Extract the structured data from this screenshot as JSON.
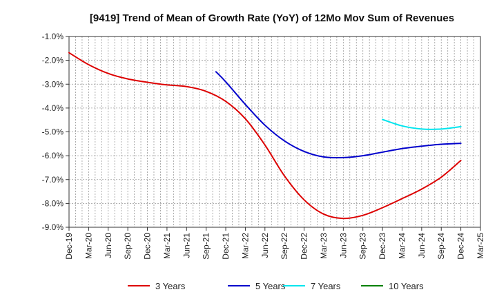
{
  "chart_data": {
    "type": "line",
    "title": "[9419]  Trend of Mean of Growth Rate (YoY) of 12Mo Mov Sum of Revenues",
    "xlabel": "",
    "ylabel": "",
    "ylim": [
      -9.0,
      -1.0
    ],
    "yticks": [
      "-1.0%",
      "-2.0%",
      "-3.0%",
      "-4.0%",
      "-5.0%",
      "-6.0%",
      "-7.0%",
      "-8.0%",
      "-9.0%"
    ],
    "ytick_values": [
      -1,
      -2,
      -3,
      -4,
      -5,
      -6,
      -7,
      -8,
      -9
    ],
    "x_categories": [
      "Dec-19",
      "Mar-20",
      "Jun-20",
      "Sep-20",
      "Dec-20",
      "Mar-21",
      "Jun-21",
      "Sep-21",
      "Dec-21",
      "Mar-22",
      "Jun-22",
      "Sep-22",
      "Dec-22",
      "Mar-23",
      "Jun-23",
      "Sep-23",
      "Dec-23",
      "Mar-24",
      "Jun-24",
      "Sep-24",
      "Dec-24",
      "Mar-25"
    ],
    "grid": true,
    "legend_position": "bottom",
    "series": [
      {
        "name": "3 Years",
        "color": "#dd0000",
        "points": [
          [
            0,
            -1.68
          ],
          [
            1,
            -2.18
          ],
          [
            2,
            -2.55
          ],
          [
            3,
            -2.78
          ],
          [
            4,
            -2.92
          ],
          [
            5,
            -3.03
          ],
          [
            6,
            -3.1
          ],
          [
            7,
            -3.3
          ],
          [
            8,
            -3.72
          ],
          [
            9,
            -4.45
          ],
          [
            10,
            -5.55
          ],
          [
            11,
            -6.85
          ],
          [
            12,
            -7.85
          ],
          [
            13,
            -8.45
          ],
          [
            14,
            -8.63
          ],
          [
            15,
            -8.5
          ],
          [
            16,
            -8.18
          ],
          [
            17,
            -7.8
          ],
          [
            18,
            -7.4
          ],
          [
            19,
            -6.9
          ],
          [
            20,
            -6.2
          ]
        ]
      },
      {
        "name": "5 Years",
        "color": "#0000cc",
        "points": [
          [
            7.5,
            -2.48
          ],
          [
            8,
            -2.9
          ],
          [
            9,
            -3.85
          ],
          [
            10,
            -4.72
          ],
          [
            11,
            -5.38
          ],
          [
            12,
            -5.82
          ],
          [
            13,
            -6.05
          ],
          [
            14,
            -6.08
          ],
          [
            15,
            -6.0
          ],
          [
            16,
            -5.85
          ],
          [
            17,
            -5.7
          ],
          [
            18,
            -5.6
          ],
          [
            19,
            -5.52
          ],
          [
            20,
            -5.48
          ]
        ]
      },
      {
        "name": "7 Years",
        "color": "#00e5ee",
        "points": [
          [
            16,
            -4.48
          ],
          [
            17,
            -4.75
          ],
          [
            18,
            -4.88
          ],
          [
            19,
            -4.88
          ],
          [
            20,
            -4.78
          ]
        ]
      },
      {
        "name": "10 Years",
        "color": "#008000",
        "points": []
      }
    ]
  }
}
